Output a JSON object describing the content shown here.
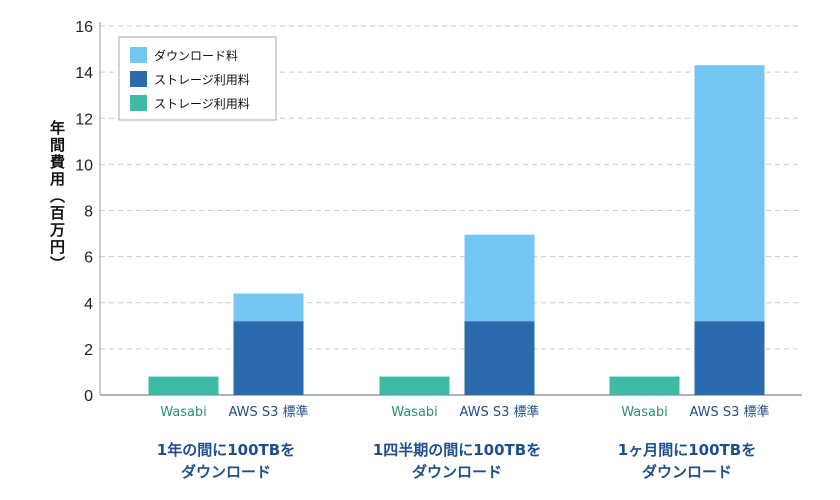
{
  "chart_data": {
    "type": "bar",
    "stacked": true,
    "ylabel": "年間費用（百万円）",
    "ylim": [
      0,
      16
    ],
    "yticks": [
      0,
      2,
      4,
      6,
      8,
      10,
      12,
      14,
      16
    ],
    "grid": true,
    "legend_position": "top-left",
    "legend": [
      {
        "label": "ダウンロード料",
        "color": "#74c6f4"
      },
      {
        "label": "ストレージ利用料",
        "color": "#2a6aad"
      },
      {
        "label": "ストレージ利用料",
        "color": "#3dbba4"
      }
    ],
    "groups": [
      {
        "label_lines": [
          "1年の間に100TBを",
          "ダウンロード"
        ],
        "bars": [
          {
            "label": "Wasabi",
            "label_color": "#2e8b7a",
            "segments": [
              {
                "value": 0.8,
                "color": "#3dbba4"
              }
            ]
          },
          {
            "label": "AWS S3 標準",
            "label_color": "#1f4e8c",
            "segments": [
              {
                "value": 3.2,
                "color": "#2a6aad"
              },
              {
                "value": 1.2,
                "color": "#74c6f4"
              }
            ]
          }
        ]
      },
      {
        "label_lines": [
          "1四半期の間に100TBを",
          "ダウンロード"
        ],
        "bars": [
          {
            "label": "Wasabi",
            "label_color": "#2e8b7a",
            "segments": [
              {
                "value": 0.8,
                "color": "#3dbba4"
              }
            ]
          },
          {
            "label": "AWS S3 標準",
            "label_color": "#1f4e8c",
            "segments": [
              {
                "value": 3.2,
                "color": "#2a6aad"
              },
              {
                "value": 3.75,
                "color": "#74c6f4"
              }
            ]
          }
        ]
      },
      {
        "label_lines": [
          "1ヶ月間に100TBを",
          "ダウンロード"
        ],
        "bars": [
          {
            "label": "Wasabi",
            "label_color": "#2e8b7a",
            "segments": [
              {
                "value": 0.8,
                "color": "#3dbba4"
              }
            ]
          },
          {
            "label": "AWS S3 標準",
            "label_color": "#1f4e8c",
            "segments": [
              {
                "value": 3.2,
                "color": "#2a6aad"
              },
              {
                "value": 11.1,
                "color": "#74c6f4"
              }
            ]
          }
        ]
      }
    ]
  }
}
